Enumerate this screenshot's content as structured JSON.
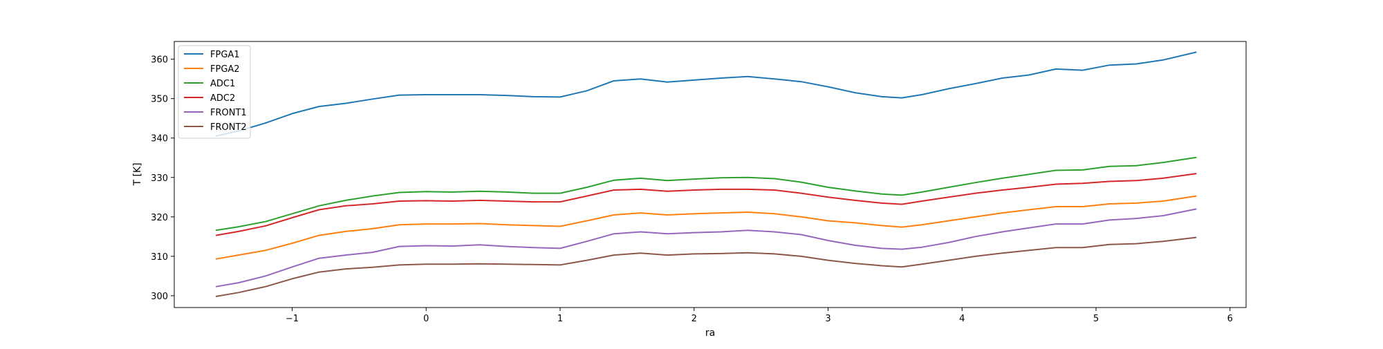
{
  "chart_data": {
    "type": "line",
    "title": "",
    "xlabel": "ra",
    "ylabel": "T [K]",
    "xlim": [
      -1.88,
      6.12
    ],
    "ylim": [
      297,
      364.5
    ],
    "xticks": [
      -1,
      0,
      1,
      2,
      3,
      4,
      5,
      6
    ],
    "yticks": [
      300,
      310,
      320,
      330,
      340,
      350,
      360
    ],
    "grid": false,
    "legend_position": "top-left",
    "series": [
      {
        "name": "FPGA1",
        "color": "#1f77b4",
        "x": [
          -1.57,
          -1.4,
          -1.2,
          -1.0,
          -0.8,
          -0.6,
          -0.4,
          -0.2,
          0.0,
          0.2,
          0.4,
          0.6,
          0.8,
          1.0,
          1.2,
          1.4,
          1.6,
          1.8,
          2.0,
          2.2,
          2.4,
          2.6,
          2.8,
          3.0,
          3.2,
          3.4,
          3.55,
          3.7,
          3.9,
          4.1,
          4.3,
          4.5,
          4.7,
          4.9,
          5.1,
          5.3,
          5.5,
          5.75
        ],
        "y": [
          340.5,
          341.8,
          343.8,
          346.2,
          348.0,
          348.8,
          349.9,
          350.9,
          351.0,
          351.0,
          351.0,
          350.8,
          350.5,
          350.4,
          352.0,
          354.5,
          355.0,
          354.2,
          354.7,
          355.2,
          355.6,
          355.0,
          354.3,
          353.0,
          351.5,
          350.5,
          350.2,
          351.0,
          352.5,
          353.8,
          355.2,
          356.0,
          357.5,
          357.2,
          358.5,
          358.8,
          359.8,
          361.8
        ]
      },
      {
        "name": "FPGA2",
        "color": "#ff7f0e",
        "x": [
          -1.57,
          -1.4,
          -1.2,
          -1.0,
          -0.8,
          -0.6,
          -0.4,
          -0.2,
          0.0,
          0.2,
          0.4,
          0.6,
          0.8,
          1.0,
          1.2,
          1.4,
          1.6,
          1.8,
          2.0,
          2.2,
          2.4,
          2.6,
          2.8,
          3.0,
          3.2,
          3.4,
          3.55,
          3.7,
          3.9,
          4.1,
          4.3,
          4.5,
          4.7,
          4.9,
          5.1,
          5.3,
          5.5,
          5.75
        ],
        "y": [
          309.3,
          310.3,
          311.5,
          313.3,
          315.3,
          316.3,
          317.0,
          318.0,
          318.2,
          318.2,
          318.3,
          318.0,
          317.8,
          317.6,
          319.0,
          320.5,
          321.0,
          320.5,
          320.8,
          321.0,
          321.2,
          320.8,
          320.0,
          319.0,
          318.5,
          317.8,
          317.4,
          318.0,
          319.0,
          320.0,
          321.0,
          321.8,
          322.6,
          322.6,
          323.3,
          323.5,
          324.0,
          325.3
        ]
      },
      {
        "name": "ADC1",
        "color": "#2ca02c",
        "x": [
          -1.57,
          -1.4,
          -1.2,
          -1.0,
          -0.8,
          -0.6,
          -0.4,
          -0.2,
          0.0,
          0.2,
          0.4,
          0.6,
          0.8,
          1.0,
          1.2,
          1.4,
          1.6,
          1.8,
          2.0,
          2.2,
          2.4,
          2.6,
          2.8,
          3.0,
          3.2,
          3.4,
          3.55,
          3.7,
          3.9,
          4.1,
          4.3,
          4.5,
          4.7,
          4.9,
          5.1,
          5.3,
          5.5,
          5.75
        ],
        "y": [
          316.6,
          317.5,
          318.8,
          320.8,
          322.8,
          324.2,
          325.3,
          326.2,
          326.4,
          326.3,
          326.5,
          326.3,
          326.0,
          326.0,
          327.5,
          329.3,
          329.8,
          329.2,
          329.6,
          329.9,
          330.0,
          329.7,
          328.8,
          327.5,
          326.6,
          325.8,
          325.5,
          326.3,
          327.5,
          328.7,
          329.8,
          330.8,
          331.8,
          331.9,
          332.8,
          333.0,
          333.8,
          335.1
        ]
      },
      {
        "name": "ADC2",
        "color": "#d62728",
        "x": [
          -1.57,
          -1.4,
          -1.2,
          -1.0,
          -0.8,
          -0.6,
          -0.4,
          -0.2,
          0.0,
          0.2,
          0.4,
          0.6,
          0.8,
          1.0,
          1.2,
          1.4,
          1.6,
          1.8,
          2.0,
          2.2,
          2.4,
          2.6,
          2.8,
          3.0,
          3.2,
          3.4,
          3.55,
          3.7,
          3.9,
          4.1,
          4.3,
          4.5,
          4.7,
          4.9,
          5.1,
          5.3,
          5.5,
          5.75
        ],
        "y": [
          315.3,
          316.3,
          317.7,
          319.8,
          321.8,
          322.8,
          323.3,
          324.0,
          324.1,
          324.0,
          324.2,
          324.0,
          323.8,
          323.8,
          325.3,
          326.8,
          327.0,
          326.5,
          326.8,
          327.0,
          327.0,
          326.8,
          326.0,
          325.0,
          324.2,
          323.5,
          323.2,
          324.0,
          325.0,
          326.0,
          326.8,
          327.5,
          328.3,
          328.5,
          329.0,
          329.2,
          329.8,
          331.0
        ]
      },
      {
        "name": "FRONT1",
        "color": "#9467bd",
        "x": [
          -1.57,
          -1.4,
          -1.2,
          -1.0,
          -0.8,
          -0.6,
          -0.4,
          -0.2,
          0.0,
          0.2,
          0.4,
          0.6,
          0.8,
          1.0,
          1.2,
          1.4,
          1.6,
          1.8,
          2.0,
          2.2,
          2.4,
          2.6,
          2.8,
          3.0,
          3.2,
          3.4,
          3.55,
          3.7,
          3.9,
          4.1,
          4.3,
          4.5,
          4.7,
          4.9,
          5.1,
          5.3,
          5.5,
          5.75
        ],
        "y": [
          302.3,
          303.3,
          305.0,
          307.3,
          309.5,
          310.3,
          311.0,
          312.5,
          312.7,
          312.6,
          312.9,
          312.5,
          312.2,
          312.0,
          313.8,
          315.7,
          316.2,
          315.7,
          316.0,
          316.2,
          316.6,
          316.2,
          315.5,
          314.0,
          312.8,
          312.0,
          311.8,
          312.3,
          313.5,
          315.0,
          316.2,
          317.2,
          318.2,
          318.2,
          319.2,
          319.6,
          320.3,
          322.0
        ]
      },
      {
        "name": "FRONT2",
        "color": "#8c564b",
        "x": [
          -1.57,
          -1.4,
          -1.2,
          -1.0,
          -0.8,
          -0.6,
          -0.4,
          -0.2,
          0.0,
          0.2,
          0.4,
          0.6,
          0.8,
          1.0,
          1.2,
          1.4,
          1.6,
          1.8,
          2.0,
          2.2,
          2.4,
          2.6,
          2.8,
          3.0,
          3.2,
          3.4,
          3.55,
          3.7,
          3.9,
          4.1,
          4.3,
          4.5,
          4.7,
          4.9,
          5.1,
          5.3,
          5.5,
          5.75
        ],
        "y": [
          299.8,
          300.8,
          302.3,
          304.3,
          306.0,
          306.8,
          307.2,
          307.8,
          308.0,
          308.0,
          308.1,
          308.0,
          307.9,
          307.8,
          309.0,
          310.3,
          310.8,
          310.3,
          310.6,
          310.7,
          310.9,
          310.6,
          310.0,
          309.0,
          308.2,
          307.6,
          307.3,
          308.0,
          309.0,
          310.0,
          310.8,
          311.5,
          312.2,
          312.2,
          313.0,
          313.2,
          313.8,
          314.8
        ]
      }
    ]
  }
}
